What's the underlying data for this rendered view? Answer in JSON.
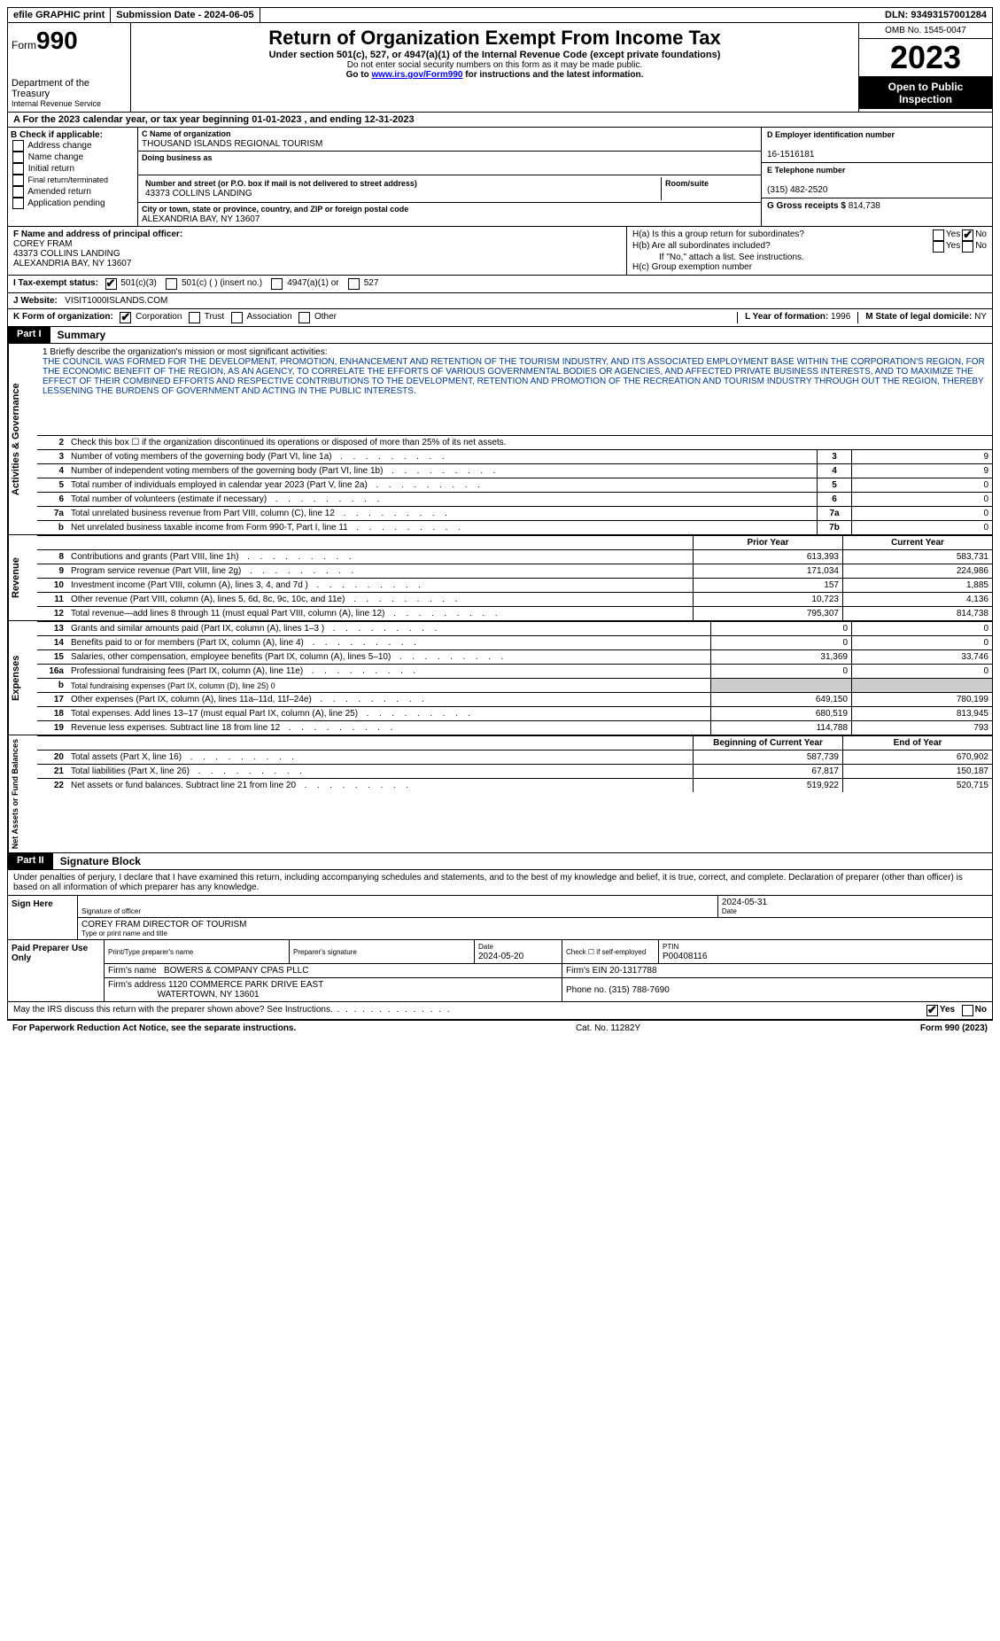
{
  "topbar": {
    "efile": "efile GRAPHIC print",
    "subdate_lbl": "Submission Date - ",
    "subdate": "2024-06-05",
    "dln_lbl": "DLN: ",
    "dln": "93493157001284"
  },
  "hdr": {
    "form_pre": "Form",
    "form_num": "990",
    "title": "Return of Organization Exempt From Income Tax",
    "sub": "Under section 501(c), 527, or 4947(a)(1) of the Internal Revenue Code (except private foundations)",
    "note1": "Do not enter social security numbers on this form as it may be made public.",
    "note2_pre": "Go to ",
    "note2_link": "www.irs.gov/Form990",
    "note2_post": " for instructions and the latest information.",
    "dept1": "Department of the Treasury",
    "dept2": "Internal Revenue Service",
    "omb": "OMB No. 1545-0047",
    "year": "2023",
    "inspect": "Open to Public Inspection"
  },
  "rowA": {
    "pre": "A For the 2023 calendar year, or tax year beginning ",
    "begin": "01-01-2023",
    "mid": " , and ending ",
    "end": "12-31-2023"
  },
  "B": {
    "lbl": "B Check if applicable:",
    "opts": [
      "Address change",
      "Name change",
      "Initial return",
      "Final return/terminated",
      "Amended return",
      "Application pending"
    ]
  },
  "C": {
    "name_lbl": "C Name of organization",
    "name": "THOUSAND ISLANDS REGIONAL TOURISM",
    "dba_lbl": "Doing business as",
    "dba": "",
    "street_lbl": "Number and street (or P.O. box if mail is not delivered to street address)",
    "street": "43373 COLLINS LANDING",
    "room_lbl": "Room/suite",
    "city_lbl": "City or town, state or province, country, and ZIP or foreign postal code",
    "city": "ALEXANDRIA BAY, NY  13607"
  },
  "D": {
    "lbl": "D Employer identification number",
    "val": "16-1516181"
  },
  "E": {
    "lbl": "E Telephone number",
    "val": "(315) 482-2520"
  },
  "G": {
    "lbl": "G Gross receipts $ ",
    "val": "814,738"
  },
  "F": {
    "lbl": "F  Name and address of principal officer:",
    "name": "COREY FRAM",
    "addr1": "43373 COLLINS LANDING",
    "addr2": "ALEXANDRIA BAY, NY  13607"
  },
  "H": {
    "a": "H(a)  Is this a group return for subordinates?",
    "b": "H(b)  Are all subordinates included?",
    "bnote": "If \"No,\" attach a list. See instructions.",
    "c": "H(c)  Group exemption number ",
    "yes": "Yes",
    "no": "No"
  },
  "I": {
    "lbl": "I  Tax-exempt status:",
    "o1": "501(c)(3)",
    "o2": "501(c) (  ) (insert no.)",
    "o3": "4947(a)(1) or",
    "o4": "527"
  },
  "J": {
    "lbl": "J  Website: ",
    "val": "VISIT1000ISLANDS.COM"
  },
  "K": {
    "lbl": "K Form of organization:",
    "o1": "Corporation",
    "o2": "Trust",
    "o3": "Association",
    "o4": "Other"
  },
  "L": {
    "lbl": "L Year of formation: ",
    "val": "1996"
  },
  "M": {
    "lbl": "M State of legal domicile: ",
    "val": "NY"
  },
  "partI": {
    "tag": "Part I",
    "label": "Summary"
  },
  "gov": {
    "vlabel": "Activities & Governance",
    "q1": "1  Briefly describe the organization's mission or most significant activities:",
    "mission": "THE COUNCIL WAS FORMED FOR THE DEVELOPMENT, PROMOTION, ENHANCEMENT AND RETENTION OF THE TOURISM INDUSTRY, AND ITS ASSOCIATED EMPLOYMENT BASE WITHIN THE CORPORATION'S REGION, FOR THE ECONOMIC BENEFIT OF THE REGION, AS AN AGENCY, TO CORRELATE THE EFFORTS OF VARIOUS GOVERNMENTAL BODIES OR AGENCIES, AND AFFECTED PRIVATE BUSINESS INTERESTS, AND TO MAXIMIZE THE EFFECT OF THEIR COMBINED EFFORTS AND RESPECTIVE CONTRIBUTIONS TO THE DEVELOPMENT, RETENTION AND PROMOTION OF THE RECREATION AND TOURISM INDUSTRY THROUGH OUT THE REGION, THEREBY LESSENING THE BURDENS OF GOVERNMENT AND ACTING IN THE PUBLIC INTERESTS.",
    "rows": [
      {
        "n": "2",
        "t": "Check this box  ☐  if the organization discontinued its operations or disposed of more than 25% of its net assets.",
        "nc": "",
        "v": ""
      },
      {
        "n": "3",
        "t": "Number of voting members of the governing body (Part VI, line 1a)",
        "nc": "3",
        "v": "9"
      },
      {
        "n": "4",
        "t": "Number of independent voting members of the governing body (Part VI, line 1b)",
        "nc": "4",
        "v": "9"
      },
      {
        "n": "5",
        "t": "Total number of individuals employed in calendar year 2023 (Part V, line 2a)",
        "nc": "5",
        "v": "0"
      },
      {
        "n": "6",
        "t": "Total number of volunteers (estimate if necessary)",
        "nc": "6",
        "v": "0"
      },
      {
        "n": "7a",
        "t": "Total unrelated business revenue from Part VIII, column (C), line 12",
        "nc": "7a",
        "v": "0"
      },
      {
        "n": "b",
        "t": "Net unrelated business taxable income from Form 990-T, Part I, line 11",
        "nc": "7b",
        "v": "0"
      }
    ]
  },
  "rev": {
    "vlabel": "Revenue",
    "hdr_prior": "Prior Year",
    "hdr_curr": "Current Year",
    "rows": [
      {
        "n": "8",
        "t": "Contributions and grants (Part VIII, line 1h)",
        "p": "613,393",
        "c": "583,731"
      },
      {
        "n": "9",
        "t": "Program service revenue (Part VIII, line 2g)",
        "p": "171,034",
        "c": "224,986"
      },
      {
        "n": "10",
        "t": "Investment income (Part VIII, column (A), lines 3, 4, and 7d )",
        "p": "157",
        "c": "1,885"
      },
      {
        "n": "11",
        "t": "Other revenue (Part VIII, column (A), lines 5, 6d, 8c, 9c, 10c, and 11e)",
        "p": "10,723",
        "c": "4,136"
      },
      {
        "n": "12",
        "t": "Total revenue—add lines 8 through 11 (must equal Part VIII, column (A), line 12)",
        "p": "795,307",
        "c": "814,738"
      }
    ]
  },
  "exp": {
    "vlabel": "Expenses",
    "rows": [
      {
        "n": "13",
        "t": "Grants and similar amounts paid (Part IX, column (A), lines 1–3 )",
        "p": "0",
        "c": "0"
      },
      {
        "n": "14",
        "t": "Benefits paid to or for members (Part IX, column (A), line 4)",
        "p": "0",
        "c": "0"
      },
      {
        "n": "15",
        "t": "Salaries, other compensation, employee benefits (Part IX, column (A), lines 5–10)",
        "p": "31,369",
        "c": "33,746"
      },
      {
        "n": "16a",
        "t": "Professional fundraising fees (Part IX, column (A), line 11e)",
        "p": "0",
        "c": "0"
      },
      {
        "n": "b",
        "t": "Total fundraising expenses (Part IX, column (D), line 25) 0",
        "p": "grey",
        "c": "grey"
      },
      {
        "n": "17",
        "t": "Other expenses (Part IX, column (A), lines 11a–11d, 11f–24e)",
        "p": "649,150",
        "c": "780,199"
      },
      {
        "n": "18",
        "t": "Total expenses. Add lines 13–17 (must equal Part IX, column (A), line 25)",
        "p": "680,519",
        "c": "813,945"
      },
      {
        "n": "19",
        "t": "Revenue less expenses. Subtract line 18 from line 12",
        "p": "114,788",
        "c": "793"
      }
    ]
  },
  "na": {
    "vlabel": "Net Assets or Fund Balances",
    "hdr_begin": "Beginning of Current Year",
    "hdr_end": "End of Year",
    "rows": [
      {
        "n": "20",
        "t": "Total assets (Part X, line 16)",
        "p": "587,739",
        "c": "670,902"
      },
      {
        "n": "21",
        "t": "Total liabilities (Part X, line 26)",
        "p": "67,817",
        "c": "150,187"
      },
      {
        "n": "22",
        "t": "Net assets or fund balances. Subtract line 21 from line 20",
        "p": "519,922",
        "c": "520,715"
      }
    ]
  },
  "partII": {
    "tag": "Part II",
    "label": "Signature Block"
  },
  "perjury": "Under penalties of perjury, I declare that I have examined this return, including accompanying schedules and statements, and to the best of my knowledge and belief, it is true, correct, and complete. Declaration of preparer (other than officer) is based on all information of which preparer has any knowledge.",
  "sign": {
    "lead": "Sign Here",
    "siglbl": "Signature of officer",
    "date": "2024-05-31",
    "datelbl": "Date",
    "name": "COREY FRAM  DIRECTOR OF TOURISM",
    "namelbl": "Type or print name and title"
  },
  "prep": {
    "lead": "Paid Preparer Use Only",
    "ptname_lbl": "Print/Type preparer's name",
    "psig_lbl": "Preparer's signature",
    "date_lbl": "Date",
    "date": "2024-05-20",
    "check_lbl": "Check ☐ if self-employed",
    "ptin_lbl": "PTIN",
    "ptin": "P00408116",
    "firmname_lbl": "Firm's name  ",
    "firmname": "BOWERS & COMPANY CPAS PLLC",
    "firmein_lbl": "Firm's EIN  ",
    "firmein": "20-1317788",
    "firmaddr_lbl": "Firm's address ",
    "firmaddr1": "1120 COMMERCE PARK DRIVE EAST",
    "firmaddr2": "WATERTOWN, NY  13601",
    "phone_lbl": "Phone no. ",
    "phone": "(315) 788-7690"
  },
  "discuss": {
    "q": "May the IRS discuss this return with the preparer shown above? See Instructions.",
    "yes": "Yes",
    "no": "No"
  },
  "footer": {
    "l": "For Paperwork Reduction Act Notice, see the separate instructions.",
    "c": "Cat. No. 11282Y",
    "r": "Form 990 (2023)"
  }
}
